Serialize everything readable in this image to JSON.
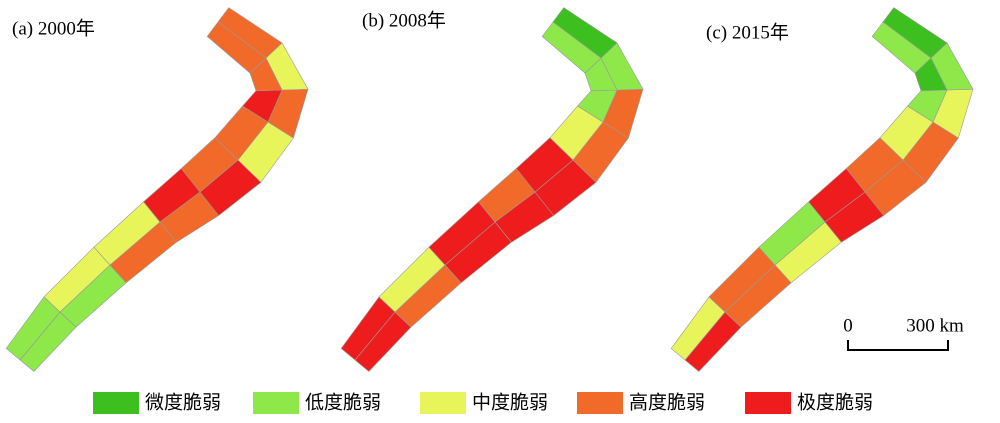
{
  "panels": [
    {
      "label": "(a) 2000年"
    },
    {
      "label": "(b) 2008年"
    },
    {
      "label": "(c) 2015年"
    }
  ],
  "scale_bar": {
    "start": "0",
    "end": "300 km"
  },
  "legend": [
    {
      "name": "微度脆弱",
      "color": "#3dbf1f"
    },
    {
      "name": "低度脆弱",
      "color": "#8ee84a"
    },
    {
      "name": "中度脆弱",
      "color": "#e8f55a"
    },
    {
      "name": "高度脆弱",
      "color": "#f26a2a"
    },
    {
      "name": "极度脆弱",
      "color": "#ee1c1c"
    }
  ]
}
